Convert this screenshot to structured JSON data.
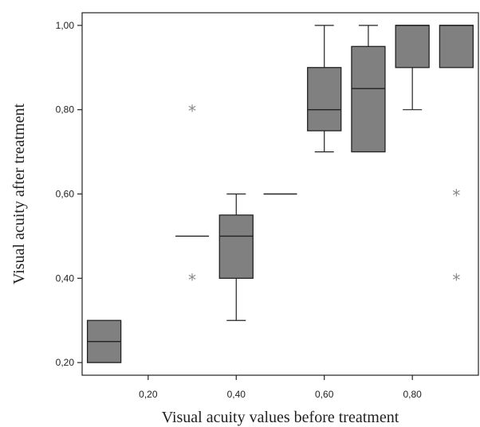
{
  "chart_data": {
    "type": "boxplot",
    "xlabel": "Visual acuity values before treatment",
    "ylabel": "Visual acuity after treatment",
    "xlim": [
      0.05,
      0.95
    ],
    "ylim": [
      0.17,
      1.03
    ],
    "xticks": [
      {
        "value": 0.2,
        "label": "0,20"
      },
      {
        "value": 0.4,
        "label": "0,40"
      },
      {
        "value": 0.6,
        "label": "0,60"
      },
      {
        "value": 0.8,
        "label": "0,80"
      }
    ],
    "yticks": [
      {
        "value": 0.2,
        "label": "0,20"
      },
      {
        "value": 0.4,
        "label": "0,40"
      },
      {
        "value": 0.6,
        "label": "0,60"
      },
      {
        "value": 0.8,
        "label": "0,80"
      },
      {
        "value": 1.0,
        "label": "1,00"
      }
    ],
    "grid": false,
    "box_color": "#808080",
    "outlier_color": "#888888",
    "outlier_symbol": "*",
    "boxes": [
      {
        "x": 0.1,
        "q1": 0.2,
        "median": 0.25,
        "q3": 0.3,
        "whisker_low": 0.2,
        "whisker_high": 0.3,
        "outliers": []
      },
      {
        "x": 0.3,
        "q1": 0.5,
        "median": 0.5,
        "q3": 0.5,
        "whisker_low": 0.5,
        "whisker_high": 0.5,
        "outliers": [
          0.8,
          0.4
        ]
      },
      {
        "x": 0.4,
        "q1": 0.4,
        "median": 0.5,
        "q3": 0.55,
        "whisker_low": 0.3,
        "whisker_high": 0.6,
        "outliers": []
      },
      {
        "x": 0.5,
        "q1": 0.6,
        "median": 0.6,
        "q3": 0.6,
        "whisker_low": 0.6,
        "whisker_high": 0.6,
        "outliers": []
      },
      {
        "x": 0.6,
        "q1": 0.75,
        "median": 0.8,
        "q3": 0.9,
        "whisker_low": 0.7,
        "whisker_high": 1.0,
        "outliers": []
      },
      {
        "x": 0.7,
        "q1": 0.7,
        "median": 0.85,
        "q3": 0.95,
        "whisker_low": 0.7,
        "whisker_high": 1.0,
        "outliers": []
      },
      {
        "x": 0.8,
        "q1": 0.9,
        "median": 1.0,
        "q3": 1.0,
        "whisker_low": 0.8,
        "whisker_high": 1.0,
        "outliers": []
      },
      {
        "x": 0.9,
        "q1": 0.9,
        "median": 1.0,
        "q3": 1.0,
        "whisker_low": 0.9,
        "whisker_high": 1.0,
        "outliers": [
          0.6,
          0.4
        ]
      }
    ]
  }
}
